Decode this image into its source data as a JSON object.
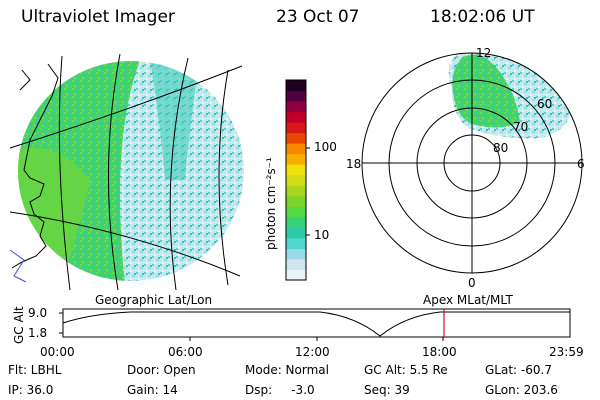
{
  "header": {
    "instrument": "Ultraviolet Imager",
    "date": "23 Oct 07",
    "time": "18:02:06 UT"
  },
  "colorbar": {
    "label": "photon cm⁻²s⁻¹",
    "ticks": [
      "100",
      "10"
    ],
    "colors": [
      "#e8f4f8",
      "#cfe6ef",
      "#9ad9e6",
      "#4fd6cf",
      "#2ccaa8",
      "#3ad07a",
      "#55d842",
      "#7bd428",
      "#a8d620",
      "#d4dc18",
      "#f0e010",
      "#f8b000",
      "#f88800",
      "#e84800",
      "#d81818",
      "#c00028",
      "#900040",
      "#500040",
      "#200020"
    ]
  },
  "polar_grid": {
    "mlt_labels": {
      "top": "12",
      "left": "18",
      "right": "6",
      "bottom": "0"
    },
    "lat_labels": [
      "60",
      "70",
      "80"
    ]
  },
  "timeline": {
    "geo_label": "Geographic Lat/Lon",
    "apex_label": "Apex MLat/MLT",
    "y_label": "GC Alt",
    "y_ticks": [
      "9.0",
      "1.8"
    ],
    "x_ticks": [
      "00:00",
      "06:00",
      "12:00",
      "18:00",
      "23:59"
    ],
    "marker_time": "18:02"
  },
  "footer": {
    "row1": {
      "flt": "Flt: LBHL",
      "door": "Door: Open",
      "mode": "Mode: Normal",
      "gcalt": "GC Alt: 5.5 Re",
      "glat": "GLat: -60.7"
    },
    "row2": {
      "ip": "IP: 36.0",
      "gain": "Gain: 14",
      "dsp": "Dsp:     -3.0",
      "seq": "Seq: 39",
      "glon": "GLon: 203.6"
    }
  }
}
